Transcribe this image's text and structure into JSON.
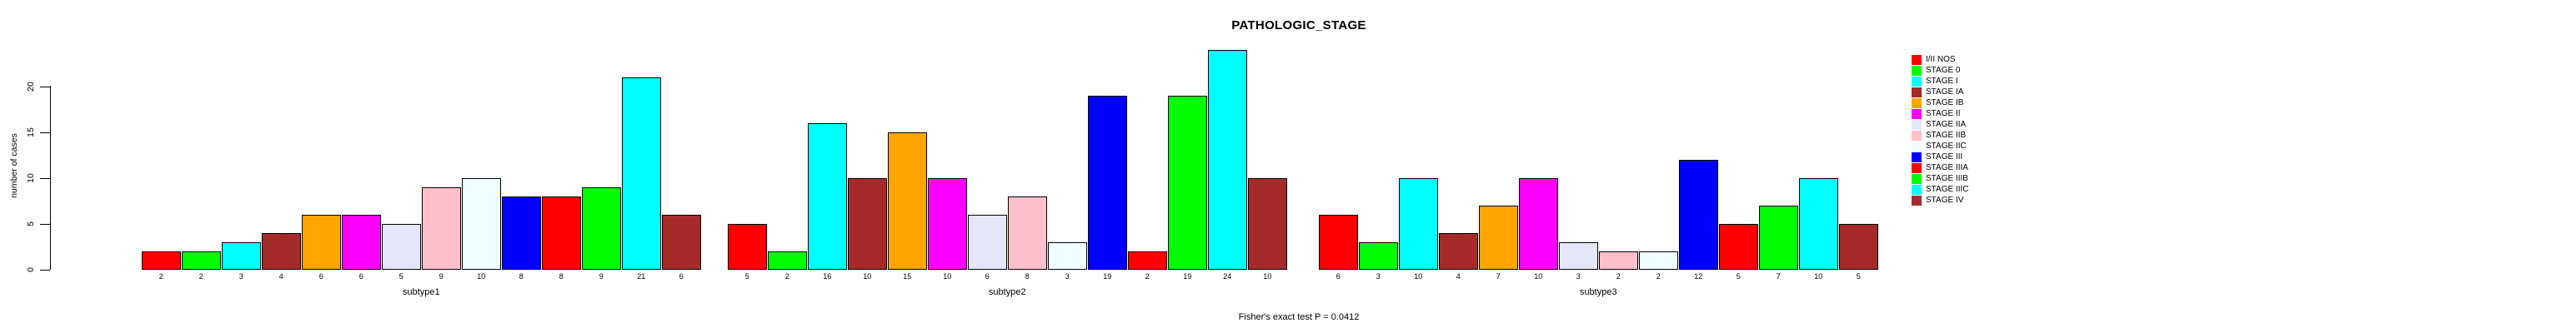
{
  "chart_data": {
    "type": "bar",
    "title": "PATHOLOGIC_STAGE",
    "ylabel": "number of cases",
    "annotation": "Fisher's exact test P = 0.0412",
    "categories": [
      "subtype1",
      "subtype2",
      "subtype3"
    ],
    "yticks": [
      0,
      5,
      10,
      15,
      20
    ],
    "ylim": [
      0,
      24
    ],
    "grid": false,
    "bar_value_labels": true,
    "legend_position": "right",
    "series": [
      {
        "name": "I/II NOS",
        "color": "#FF0000",
        "values": [
          2,
          5,
          6
        ]
      },
      {
        "name": "STAGE 0",
        "color": "#00FF00",
        "values": [
          2,
          2,
          3
        ]
      },
      {
        "name": "STAGE I",
        "color": "#00FFFF",
        "values": [
          3,
          16,
          10
        ]
      },
      {
        "name": "STAGE IA",
        "color": "#A52A2A",
        "values": [
          4,
          10,
          4
        ]
      },
      {
        "name": "STAGE IB",
        "color": "#FFA500",
        "values": [
          6,
          15,
          7
        ]
      },
      {
        "name": "STAGE II",
        "color": "#FF00FF",
        "values": [
          6,
          10,
          10
        ]
      },
      {
        "name": "STAGE IIA",
        "color": "#E6E6FA",
        "values": [
          5,
          6,
          3
        ]
      },
      {
        "name": "STAGE IIB",
        "color": "#FFC0CB",
        "values": [
          9,
          8,
          2
        ]
      },
      {
        "name": "STAGE IIC",
        "color": "#F0FFFF",
        "values": [
          10,
          3,
          2
        ]
      },
      {
        "name": "STAGE III",
        "color": "#0000FF",
        "values": [
          8,
          19,
          12
        ]
      },
      {
        "name": "STAGE IIIA",
        "color": "#FF0000",
        "values": [
          8,
          2,
          5
        ]
      },
      {
        "name": "STAGE IIIB",
        "color": "#00FF00",
        "values": [
          9,
          19,
          7
        ]
      },
      {
        "name": "STAGE IIIC",
        "color": "#00FFFF",
        "values": [
          21,
          24,
          10
        ]
      },
      {
        "name": "STAGE IV",
        "color": "#A52A2A",
        "values": [
          6,
          10,
          5
        ]
      }
    ]
  }
}
